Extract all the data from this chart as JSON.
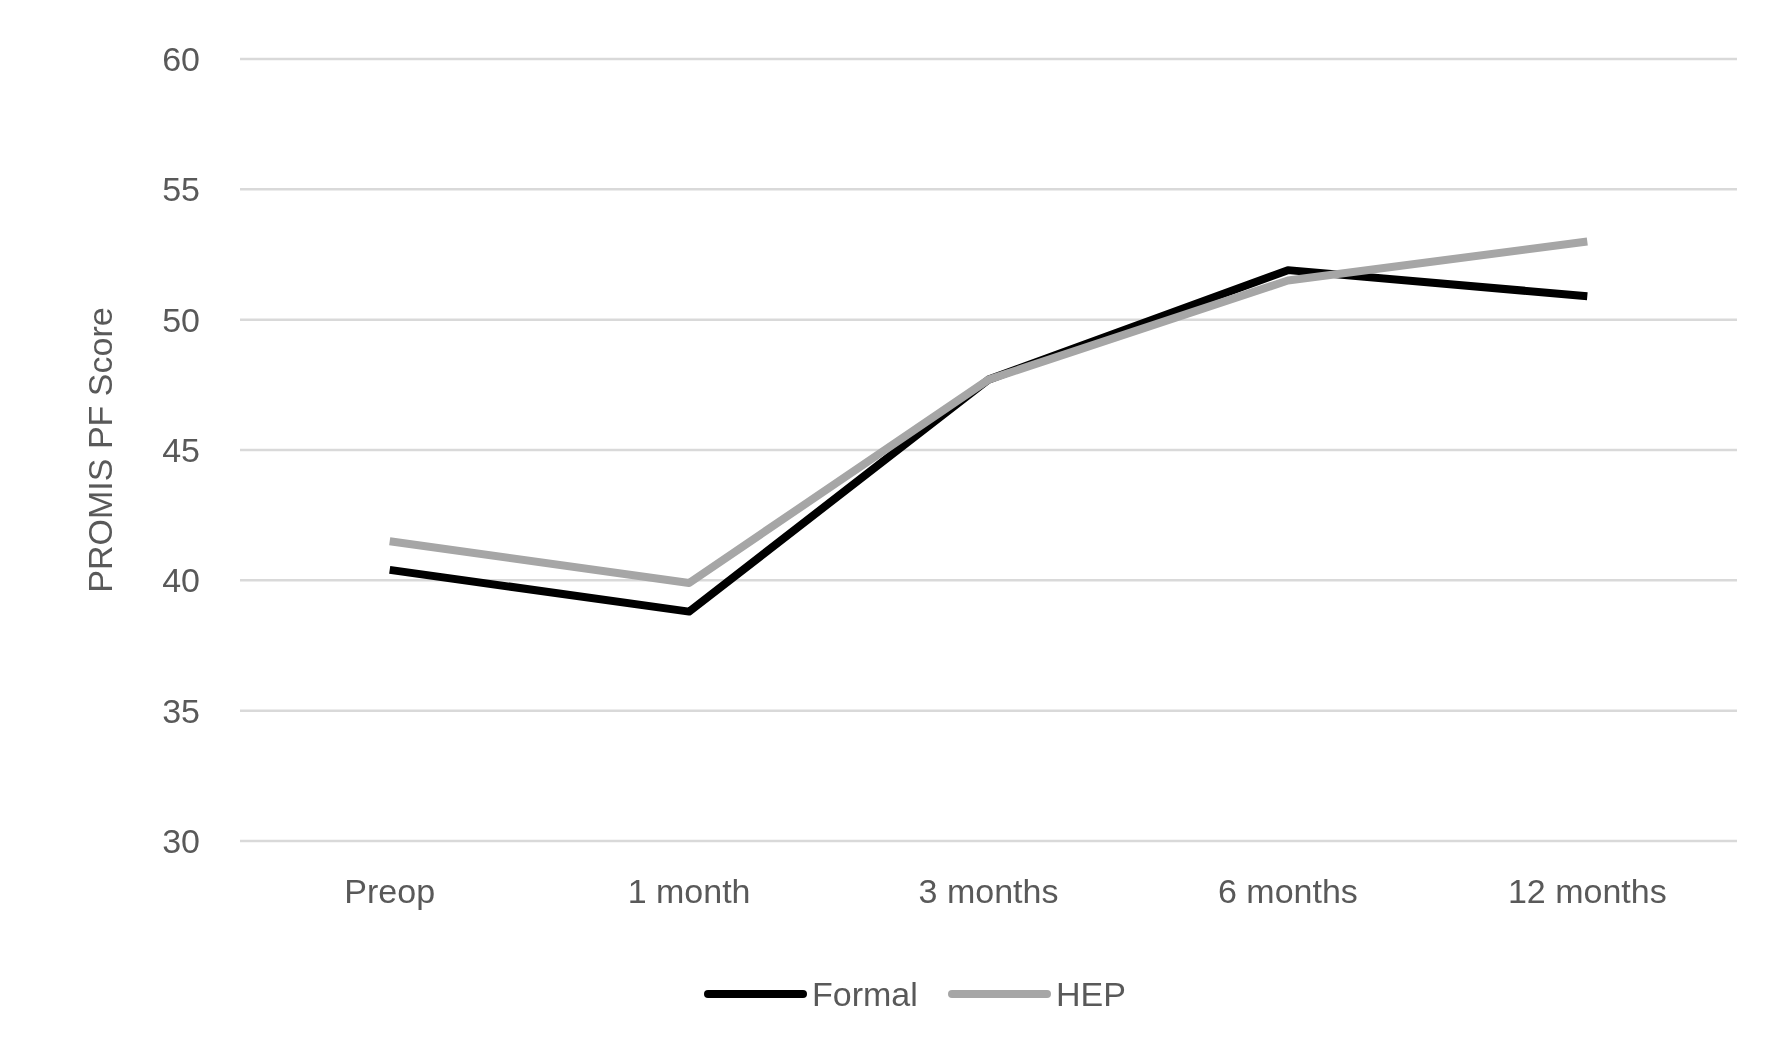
{
  "chart_data": {
    "type": "line",
    "ylabel": "PROMIS PF Score",
    "categories": [
      "Preop",
      "1 month",
      "3 months",
      "6 months",
      "12 months"
    ],
    "series": [
      {
        "name": "Formal",
        "color": "#000000",
        "values": [
          40.4,
          38.8,
          47.7,
          51.9,
          50.9
        ]
      },
      {
        "name": "HEP",
        "color": "#a6a6a6",
        "values": [
          41.5,
          39.9,
          47.7,
          51.5,
          53.0
        ]
      }
    ],
    "ylim": [
      30,
      60
    ],
    "yticks": [
      30,
      35,
      40,
      45,
      50,
      55,
      60
    ],
    "grid": "y",
    "legend": "bottom",
    "marker": "none",
    "line_style": "solid"
  }
}
